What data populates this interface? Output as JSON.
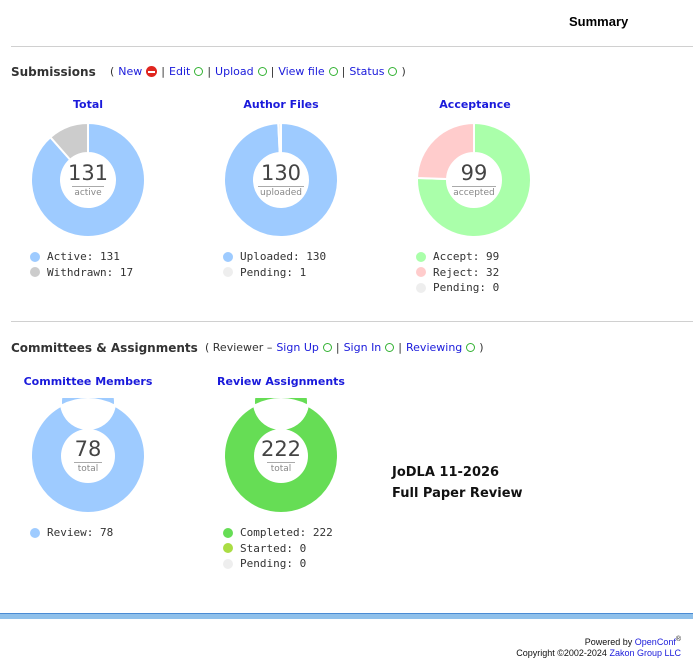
{
  "header": {
    "title": "Summary"
  },
  "submissions": {
    "title": "Submissions",
    "links": [
      {
        "label": "New",
        "status": "no"
      },
      {
        "label": "Edit",
        "status": "ok"
      },
      {
        "label": "Upload",
        "status": "ok"
      },
      {
        "label": "View file",
        "status": "ok"
      },
      {
        "label": "Status",
        "status": "ok"
      }
    ],
    "charts": [
      {
        "title": "Total",
        "center_value": "131",
        "center_label": "active",
        "segments": [
          {
            "label": "Active",
            "value": 131,
            "color": "#9ecbff"
          },
          {
            "label": "Withdrawn",
            "value": 17,
            "color": "#cccccc"
          }
        ],
        "legend": [
          {
            "text": "Active: 131",
            "color": "#9ecbff"
          },
          {
            "text": "Withdrawn: 17",
            "color": "#cccccc"
          }
        ]
      },
      {
        "title": "Author Files",
        "center_value": "130",
        "center_label": "uploaded",
        "segments": [
          {
            "label": "Uploaded",
            "value": 130,
            "color": "#9ecbff"
          },
          {
            "label": "Pending",
            "value": 1,
            "color": "#eeeeee"
          }
        ],
        "legend": [
          {
            "text": "Uploaded: 130",
            "color": "#9ecbff"
          },
          {
            "text": "Pending: 1",
            "color": "#eeeeee"
          }
        ]
      },
      {
        "title": "Acceptance",
        "center_value": "99",
        "center_label": "accepted",
        "segments": [
          {
            "label": "Accept",
            "value": 99,
            "color": "#aaffaa"
          },
          {
            "label": "Reject",
            "value": 32,
            "color": "#ffcccc"
          },
          {
            "label": "Pending",
            "value": 0,
            "color": "#eeeeee"
          }
        ],
        "legend": [
          {
            "text": "Accept: 99",
            "color": "#aaffaa"
          },
          {
            "text": "Reject: 32",
            "color": "#ffcccc"
          },
          {
            "text": "Pending: 0",
            "color": "#eeeeee"
          }
        ]
      }
    ]
  },
  "committees": {
    "title": "Committees & Assignments",
    "prefix": "( Reviewer –",
    "suffix": ")",
    "links": [
      {
        "label": "Sign Up",
        "status": "ok"
      },
      {
        "label": "Sign In",
        "status": "ok"
      },
      {
        "label": "Reviewing",
        "status": "ok"
      }
    ],
    "charts": [
      {
        "title": "Committee Members",
        "center_value": "78",
        "center_label": "total",
        "segments": [
          {
            "label": "Review",
            "value": 78,
            "color": "#9ecbff"
          }
        ],
        "legend": [
          {
            "text": "Review: 78",
            "color": "#9ecbff"
          }
        ]
      },
      {
        "title": "Review Assignments",
        "center_value": "222",
        "center_label": "total",
        "segments": [
          {
            "label": "Completed",
            "value": 222,
            "color": "#66dd55"
          },
          {
            "label": "Started",
            "value": 0,
            "color": "#aadd44"
          },
          {
            "label": "Pending",
            "value": 0,
            "color": "#eeeeee"
          }
        ],
        "legend": [
          {
            "text": "Completed: 222",
            "color": "#66dd55"
          },
          {
            "text": "Started: 0",
            "color": "#aadd44"
          },
          {
            "text": "Pending: 0",
            "color": "#eeeeee"
          }
        ]
      }
    ]
  },
  "conference": {
    "line1": "JoDLA 11-2026",
    "line2": "Full Paper Review"
  },
  "footer": {
    "powered_prefix": "Powered by",
    "powered_link": "OpenConf",
    "powered_reg": "®",
    "copyright_prefix": "Copyright ©2002-2024",
    "copyright_link": "Zakon Group LLC"
  }
}
